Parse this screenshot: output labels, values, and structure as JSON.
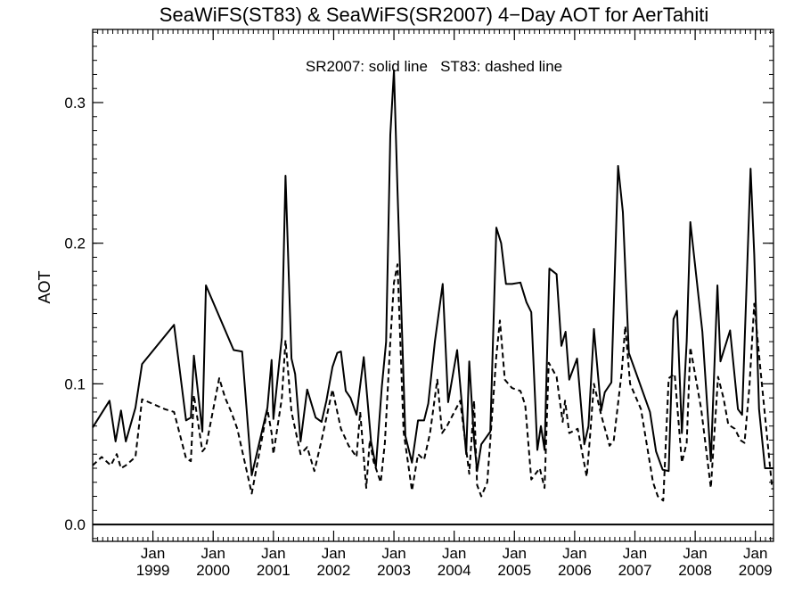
{
  "chart_data": {
    "type": "line",
    "title": "SeaWiFS(ST83) & SeaWiFS(SR2007) 4−Day AOT for AerTahiti",
    "annotation": "SR2007: solid line   ST83: dashed line",
    "ylabel": "AOT",
    "xlabel": "",
    "xlim": [
      1998.0,
      2009.3
    ],
    "ylim": [
      -0.012,
      0.352
    ],
    "y_ticks": [
      0.0,
      0.1,
      0.2,
      0.3
    ],
    "y_tick_labels": [
      "0.0",
      "0.1",
      "0.2",
      "0.3"
    ],
    "x_ticks": [
      {
        "month": "Jan",
        "year": "1999",
        "x": 1999.0
      },
      {
        "month": "Jan",
        "year": "2000",
        "x": 2000.0
      },
      {
        "month": "Jan",
        "year": "2001",
        "x": 2001.0
      },
      {
        "month": "Jan",
        "year": "2002",
        "x": 2002.0
      },
      {
        "month": "Jan",
        "year": "2003",
        "x": 2003.0
      },
      {
        "month": "Jan",
        "year": "2004",
        "x": 2004.0
      },
      {
        "month": "Jan",
        "year": "2005",
        "x": 2005.0
      },
      {
        "month": "Jan",
        "year": "2006",
        "x": 2006.0
      },
      {
        "month": "Jan",
        "year": "2007",
        "x": 2007.0
      },
      {
        "month": "Jan",
        "year": "2008",
        "x": 2008.0
      },
      {
        "month": "Jan",
        "year": "2009",
        "x": 2009.0
      }
    ],
    "reference_line": 0.0,
    "series": [
      {
        "style": "solid",
        "x": [
          1998.0,
          1998.28,
          1998.38,
          1998.47,
          1998.55,
          1998.71,
          1998.82,
          1999.35,
          1999.55,
          1999.63,
          1999.68,
          1999.82,
          1999.88,
          2000.34,
          2000.48,
          2000.64,
          2000.9,
          2000.97,
          2001.0,
          2001.14,
          2001.2,
          2001.3,
          2001.36,
          2001.45,
          2001.56,
          2001.7,
          2001.8,
          2001.88,
          2001.98,
          2002.06,
          2002.12,
          2002.2,
          2002.28,
          2002.38,
          2002.5,
          2002.62,
          2002.7,
          2002.8,
          2002.87,
          2002.94,
          2003.0,
          2003.06,
          2003.19,
          2003.3,
          2003.4,
          2003.5,
          2003.57,
          2003.68,
          2003.81,
          2003.9,
          2004.05,
          2004.2,
          2004.25,
          2004.33,
          2004.38,
          2004.45,
          2004.6,
          2004.7,
          2004.78,
          2004.86,
          2004.96,
          2005.1,
          2005.2,
          2005.28,
          2005.38,
          2005.44,
          2005.5,
          2005.58,
          2005.7,
          2005.78,
          2005.85,
          2005.91,
          2006.04,
          2006.16,
          2006.23,
          2006.32,
          2006.44,
          2006.5,
          2006.61,
          2006.72,
          2006.8,
          2006.9,
          2007.05,
          2007.25,
          2007.35,
          2007.46,
          2007.56,
          2007.64,
          2007.7,
          2007.78,
          2007.86,
          2007.92,
          2008.12,
          2008.26,
          2008.37,
          2008.42,
          2008.58,
          2008.71,
          2008.78,
          2008.92,
          2008.98,
          2009.06,
          2009.16,
          2009.3
        ],
        "y": [
          0.069,
          0.088,
          0.059,
          0.081,
          0.059,
          0.083,
          0.114,
          0.142,
          0.074,
          0.076,
          0.12,
          0.066,
          0.17,
          0.124,
          0.123,
          0.035,
          0.083,
          0.117,
          0.075,
          0.133,
          0.248,
          0.118,
          0.107,
          0.059,
          0.096,
          0.076,
          0.073,
          0.088,
          0.112,
          0.122,
          0.123,
          0.095,
          0.09,
          0.078,
          0.119,
          0.059,
          0.041,
          0.098,
          0.13,
          0.277,
          0.323,
          0.237,
          0.063,
          0.044,
          0.074,
          0.074,
          0.086,
          0.13,
          0.171,
          0.087,
          0.124,
          0.05,
          0.116,
          0.06,
          0.038,
          0.057,
          0.066,
          0.211,
          0.2,
          0.171,
          0.171,
          0.172,
          0.158,
          0.151,
          0.053,
          0.07,
          0.053,
          0.182,
          0.178,
          0.127,
          0.137,
          0.103,
          0.118,
          0.057,
          0.07,
          0.139,
          0.081,
          0.094,
          0.101,
          0.255,
          0.222,
          0.122,
          0.104,
          0.08,
          0.052,
          0.039,
          0.038,
          0.146,
          0.152,
          0.065,
          0.13,
          0.215,
          0.137,
          0.045,
          0.17,
          0.116,
          0.138,
          0.082,
          0.078,
          0.253,
          0.192,
          0.082,
          0.04,
          0.04
        ]
      },
      {
        "style": "dashed",
        "x": [
          1998.0,
          1998.15,
          1998.3,
          1998.4,
          1998.47,
          1998.55,
          1998.71,
          1998.82,
          1999.2,
          1999.35,
          1999.55,
          1999.63,
          1999.68,
          1999.82,
          1999.88,
          2000.1,
          2000.2,
          2000.3,
          2000.4,
          2000.64,
          2000.9,
          2000.97,
          2001.0,
          2001.14,
          2001.2,
          2001.3,
          2001.36,
          2001.45,
          2001.56,
          2001.68,
          2001.8,
          2001.9,
          2001.98,
          2002.06,
          2002.12,
          2002.25,
          2002.38,
          2002.44,
          2002.54,
          2002.6,
          2002.66,
          2002.78,
          2002.85,
          2002.94,
          2003.0,
          2003.06,
          2003.16,
          2003.3,
          2003.4,
          2003.5,
          2003.6,
          2003.72,
          2003.8,
          2003.88,
          2004.1,
          2004.25,
          2004.33,
          2004.38,
          2004.45,
          2004.55,
          2004.7,
          2004.76,
          2004.84,
          2004.96,
          2005.1,
          2005.18,
          2005.28,
          2005.42,
          2005.5,
          2005.57,
          2005.7,
          2005.8,
          2005.84,
          2005.91,
          2006.05,
          2006.2,
          2006.25,
          2006.32,
          2006.44,
          2006.58,
          2006.65,
          2006.78,
          2006.84,
          2006.92,
          2007.1,
          2007.3,
          2007.38,
          2007.47,
          2007.56,
          2007.66,
          2007.78,
          2007.86,
          2007.92,
          2008.1,
          2008.26,
          2008.38,
          2008.47,
          2008.55,
          2008.66,
          2008.75,
          2008.82,
          2008.9,
          2008.98,
          2009.08,
          2009.28
        ],
        "y": [
          0.042,
          0.048,
          0.042,
          0.05,
          0.04,
          0.042,
          0.048,
          0.089,
          0.082,
          0.08,
          0.047,
          0.045,
          0.092,
          0.052,
          0.055,
          0.104,
          0.09,
          0.08,
          0.068,
          0.022,
          0.082,
          0.065,
          0.05,
          0.09,
          0.131,
          0.08,
          0.068,
          0.05,
          0.055,
          0.038,
          0.06,
          0.08,
          0.096,
          0.08,
          0.068,
          0.056,
          0.048,
          0.08,
          0.026,
          0.06,
          0.045,
          0.03,
          0.058,
          0.13,
          0.172,
          0.185,
          0.066,
          0.024,
          0.05,
          0.046,
          0.065,
          0.103,
          0.065,
          0.07,
          0.088,
          0.036,
          0.088,
          0.028,
          0.02,
          0.03,
          0.12,
          0.145,
          0.103,
          0.097,
          0.095,
          0.085,
          0.032,
          0.04,
          0.026,
          0.115,
          0.105,
          0.073,
          0.088,
          0.065,
          0.068,
          0.034,
          0.06,
          0.1,
          0.078,
          0.056,
          0.06,
          0.108,
          0.141,
          0.1,
          0.082,
          0.03,
          0.02,
          0.017,
          0.104,
          0.107,
          0.044,
          0.058,
          0.126,
          0.082,
          0.026,
          0.105,
          0.09,
          0.071,
          0.068,
          0.06,
          0.058,
          0.098,
          0.157,
          0.112,
          0.025
        ]
      }
    ]
  }
}
